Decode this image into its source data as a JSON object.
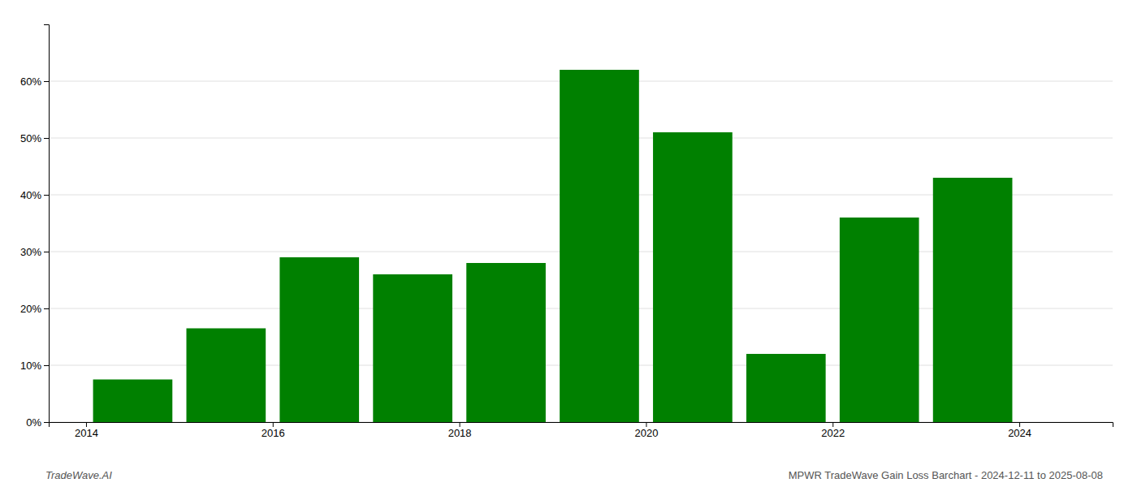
{
  "chart_data": {
    "type": "bar",
    "x": [
      2014,
      2015,
      2016,
      2017,
      2018,
      2019,
      2020,
      2021,
      2022,
      2023
    ],
    "values": [
      0.075,
      0.165,
      0.29,
      0.26,
      0.28,
      0.62,
      0.51,
      0.12,
      0.36,
      0.43
    ],
    "color": "#008000",
    "xlim": [
      2013.1,
      2024.5
    ],
    "xticks": [
      {
        "value": 2013.5,
        "label": "2014"
      },
      {
        "value": 2015.5,
        "label": "2016"
      },
      {
        "value": 2017.5,
        "label": "2018"
      },
      {
        "value": 2019.5,
        "label": "2020"
      },
      {
        "value": 2021.5,
        "label": "2022"
      },
      {
        "value": 2023.5,
        "label": "2024"
      }
    ],
    "ylim": [
      0,
      0.7
    ],
    "yticks": [
      {
        "value": 0,
        "label": "0%"
      },
      {
        "value": 0.1,
        "label": "10%"
      },
      {
        "value": 0.2,
        "label": "20%"
      },
      {
        "value": 0.3,
        "label": "30%"
      },
      {
        "value": 0.4,
        "label": "40%"
      },
      {
        "value": 0.5,
        "label": "50%"
      },
      {
        "value": 0.6,
        "label": "60%"
      }
    ],
    "grid": true,
    "annotations": [
      "TradeWave.AI",
      "MPWR TradeWave Gain Loss Barchart - 2024-12-11 to 2025-08-08"
    ]
  }
}
